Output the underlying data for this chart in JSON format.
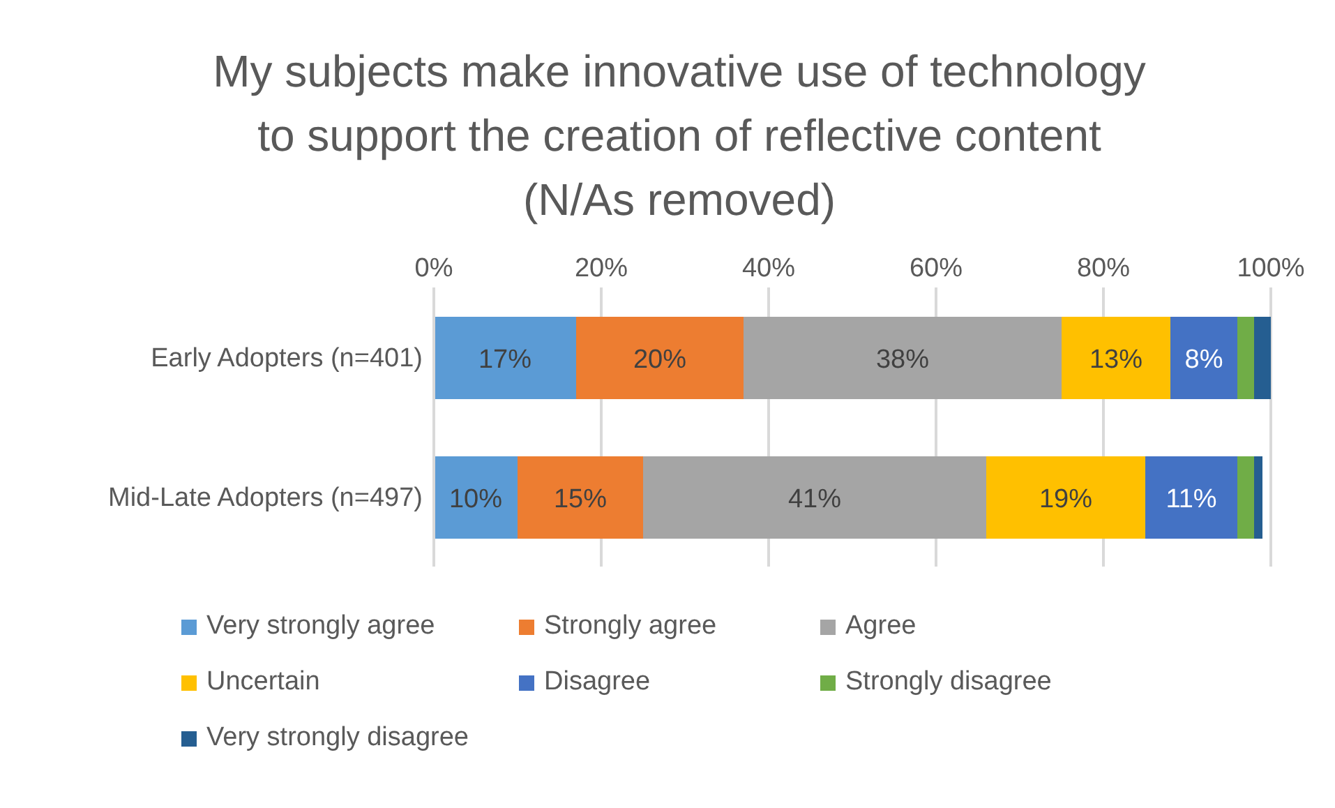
{
  "chart_data": {
    "type": "bar",
    "orientation": "horizontal",
    "stacked": true,
    "title": "My subjects make innovative use of technology\nto support the creation of reflective content\n(N/As removed)",
    "categories": [
      "Early Adopters (n=401)",
      "Mid-Late Adopters (n=497)"
    ],
    "series": [
      {
        "name": "Very strongly agree",
        "color": "#5b9bd5",
        "values": [
          17,
          10
        ],
        "value_labels": [
          "17%",
          "10%"
        ]
      },
      {
        "name": "Strongly agree",
        "color": "#ed7d31",
        "values": [
          20,
          15
        ],
        "value_labels": [
          "20%",
          "15%"
        ]
      },
      {
        "name": "Agree",
        "color": "#a5a5a5",
        "values": [
          38,
          41
        ],
        "value_labels": [
          "38%",
          "41%"
        ]
      },
      {
        "name": "Uncertain",
        "color": "#ffc000",
        "values": [
          13,
          19
        ],
        "value_labels": [
          "13%",
          "19%"
        ]
      },
      {
        "name": "Disagree",
        "color": "#4472c4",
        "values": [
          8,
          11
        ],
        "value_labels": [
          "8%",
          "11%"
        ]
      },
      {
        "name": "Strongly disagree",
        "color": "#70ad47",
        "values": [
          2,
          2
        ],
        "value_labels": [
          null,
          null
        ]
      },
      {
        "name": "Very strongly disagree",
        "color": "#255e91",
        "values": [
          2,
          1
        ],
        "value_labels": [
          null,
          null
        ]
      }
    ],
    "xlim": [
      0,
      100
    ],
    "xticks": [
      {
        "value": 0,
        "label": "0%"
      },
      {
        "value": 20,
        "label": "20%"
      },
      {
        "value": 40,
        "label": "40%"
      },
      {
        "value": 60,
        "label": "60%"
      },
      {
        "value": 80,
        "label": "80%"
      },
      {
        "value": 100,
        "label": "100%"
      }
    ],
    "grid": "x",
    "legend": "bottom"
  }
}
